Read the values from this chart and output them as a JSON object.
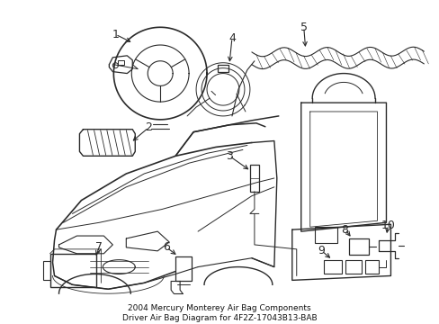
{
  "title": "2004 Mercury Monterey Air Bag Components\nDriver Air Bag Diagram for 4F2Z-17043B13-BAB",
  "bg_color": "#ffffff",
  "line_color": "#2a2a2a",
  "fig_width": 4.89,
  "fig_height": 3.6,
  "dpi": 100,
  "label_fontsize": 9,
  "title_fontsize": 6.5
}
